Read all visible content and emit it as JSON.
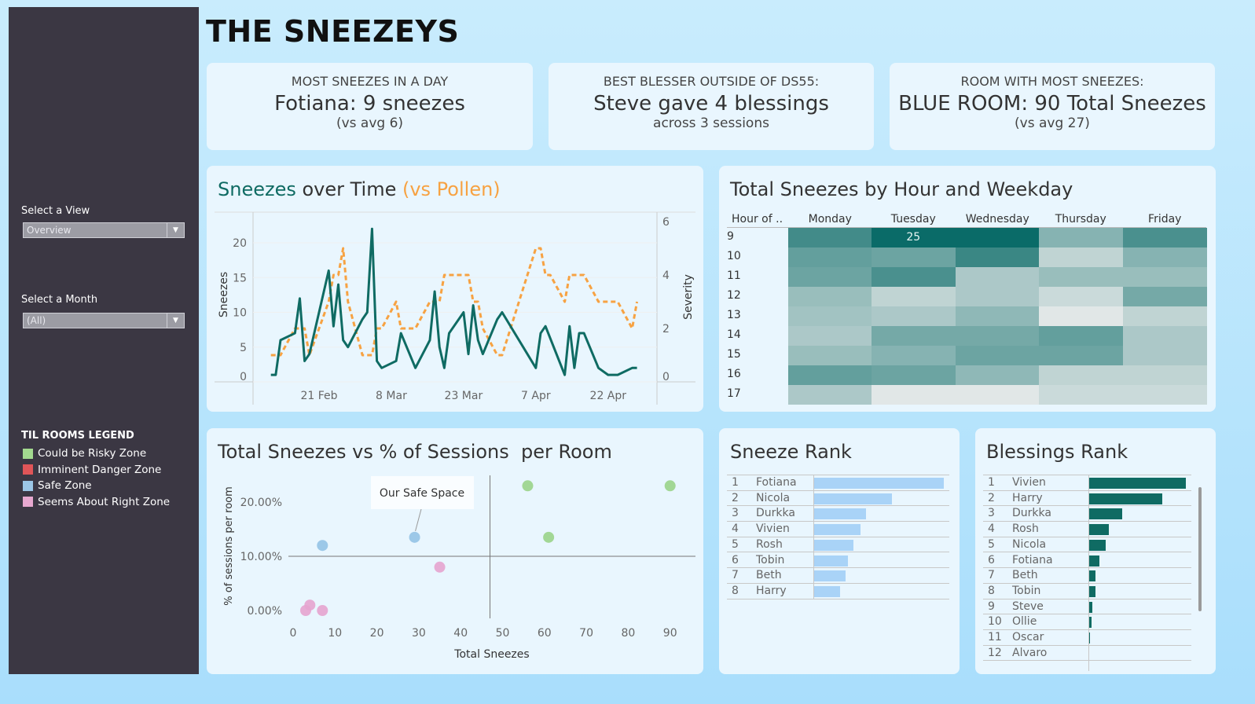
{
  "title": "THE SNEEZEYS",
  "sidebar": {
    "view_label": "Select a View",
    "view_value": "Overview",
    "month_label": "Select a Month",
    "month_value": "(All)",
    "legend_title": "TIL ROOMS LEGEND",
    "legend": [
      {
        "label": "Could be Risky Zone",
        "color": "#a3d98f"
      },
      {
        "label": "Imminent Danger Zone",
        "color": "#e05558"
      },
      {
        "label": "Safe Zone",
        "color": "#9cc6e6"
      },
      {
        "label": "Seems About Right Zone",
        "color": "#e7a8d0"
      }
    ]
  },
  "kpis": [
    {
      "label": "MOST SNEEZES IN A DAY",
      "value": "Fotiana: 9 sneezes",
      "sub": "(vs avg 6)"
    },
    {
      "label": "BEST BLESSER OUTSIDE OF DS55:",
      "value": "Steve gave 4 blessings",
      "sub": "across 3 sessions"
    },
    {
      "label": "ROOM WITH MOST SNEEZES:",
      "value": "BLUE ROOM: 90 Total Sneezes",
      "sub": "(vs avg 27)"
    }
  ],
  "colors": {
    "teal": "#0f6b63",
    "orange": "#f7a242",
    "bar_light": "#a9d3f7"
  },
  "chart_data": [
    {
      "type": "line",
      "title_parts": [
        "Sneezes",
        " over Time ",
        "(vs Pollen)"
      ],
      "ylabel": "Sneezes",
      "y2label": "Severity",
      "yticks": [
        0,
        5,
        10,
        15,
        20
      ],
      "y2ticks": [
        0,
        2,
        4,
        6
      ],
      "xticks": [
        "21 Feb",
        "8 Mar",
        "23 Mar",
        "7 Apr",
        "22 Apr"
      ],
      "xtick_dates": [
        "02-21",
        "03-08",
        "03-23",
        "04-07",
        "04-22"
      ],
      "series": [
        {
          "axis": "left",
          "style": "solid",
          "points": [
            [
              "02-11",
              1
            ],
            [
              "02-12",
              1
            ],
            [
              "02-13",
              6
            ],
            [
              "02-16",
              7
            ],
            [
              "02-17",
              12
            ],
            [
              "02-18",
              3
            ],
            [
              "02-19",
              4
            ],
            [
              "02-23",
              16
            ],
            [
              "02-24",
              8
            ],
            [
              "02-25",
              14
            ],
            [
              "02-26",
              6
            ],
            [
              "02-27",
              5
            ],
            [
              "03-02",
              9
            ],
            [
              "03-03",
              10
            ],
            [
              "03-04",
              22
            ],
            [
              "03-05",
              3
            ],
            [
              "03-06",
              2
            ],
            [
              "03-09",
              3
            ],
            [
              "03-10",
              7
            ],
            [
              "03-13",
              2
            ],
            [
              "03-16",
              6
            ],
            [
              "03-17",
              13
            ],
            [
              "03-18",
              5
            ],
            [
              "03-19",
              2
            ],
            [
              "03-20",
              7
            ],
            [
              "03-23",
              10
            ],
            [
              "03-24",
              4
            ],
            [
              "03-25",
              11
            ],
            [
              "03-26",
              6
            ],
            [
              "03-27",
              4
            ],
            [
              "03-30",
              9
            ],
            [
              "03-31",
              10
            ],
            [
              "04-07",
              2
            ],
            [
              "04-08",
              7
            ],
            [
              "04-09",
              8
            ],
            [
              "04-13",
              1
            ],
            [
              "04-14",
              8
            ],
            [
              "04-15",
              2
            ],
            [
              "04-16",
              7
            ],
            [
              "04-17",
              7
            ],
            [
              "04-20",
              2
            ],
            [
              "04-22",
              1
            ],
            [
              "04-24",
              1
            ],
            [
              "04-27",
              2
            ],
            [
              "04-28",
              2
            ]
          ]
        },
        {
          "axis": "right",
          "style": "dashed",
          "points": [
            [
              "02-11",
              1
            ],
            [
              "02-13",
              1
            ],
            [
              "02-16",
              2
            ],
            [
              "02-18",
              2
            ],
            [
              "02-19",
              1
            ],
            [
              "02-23",
              3
            ],
            [
              "02-24",
              4
            ],
            [
              "02-25",
              4
            ],
            [
              "02-26",
              5
            ],
            [
              "02-27",
              3
            ],
            [
              "03-02",
              1
            ],
            [
              "03-04",
              1
            ],
            [
              "03-05",
              2
            ],
            [
              "03-06",
              2
            ],
            [
              "03-09",
              3
            ],
            [
              "03-10",
              2
            ],
            [
              "03-13",
              2
            ],
            [
              "03-16",
              3
            ],
            [
              "03-18",
              3
            ],
            [
              "03-19",
              4
            ],
            [
              "03-24",
              4
            ],
            [
              "03-25",
              3
            ],
            [
              "03-26",
              3
            ],
            [
              "03-27",
              2
            ],
            [
              "03-30",
              1
            ],
            [
              "03-31",
              1
            ],
            [
              "04-07",
              5
            ],
            [
              "04-08",
              5
            ],
            [
              "04-09",
              4
            ],
            [
              "04-10",
              4
            ],
            [
              "04-13",
              3
            ],
            [
              "04-14",
              4
            ],
            [
              "04-17",
              4
            ],
            [
              "04-20",
              3
            ],
            [
              "04-24",
              3
            ],
            [
              "04-27",
              2
            ],
            [
              "04-28",
              3
            ]
          ]
        }
      ]
    },
    {
      "type": "heatmap",
      "title": "Total Sneezes by Hour and Weekday",
      "row_header": "Hour of ..",
      "columns": [
        "Monday",
        "Tuesday",
        "Wednesday",
        "Thursday",
        "Friday"
      ],
      "rows": [
        "9",
        "10",
        "11",
        "12",
        "13",
        "14",
        "15",
        "16",
        "17"
      ],
      "values": [
        [
          18,
          25,
          25,
          10,
          17
        ],
        [
          14,
          13,
          19,
          4,
          10
        ],
        [
          13,
          17,
          6,
          8,
          8
        ],
        [
          8,
          4,
          6,
          3,
          12
        ],
        [
          7,
          6,
          9,
          1,
          4
        ],
        [
          6,
          12,
          12,
          14,
          6
        ],
        [
          8,
          10,
          13,
          13,
          6
        ],
        [
          14,
          13,
          9,
          4,
          4
        ],
        [
          6,
          1,
          1,
          3,
          3
        ]
      ],
      "label": {
        "row": 0,
        "col": 1,
        "text": "25"
      }
    },
    {
      "type": "scatter",
      "title": "Total Sneezes vs % of Sessions  per Room",
      "xlabel": "Total Sneezes",
      "ylabel": "% of sessions per room",
      "xticks": [
        "0",
        "10",
        "20",
        "30",
        "40",
        "50",
        "60",
        "70",
        "80",
        "90"
      ],
      "yticks": [
        "0.00%",
        "10.00%",
        "20.00%"
      ],
      "ref_lines": {
        "x": 47,
        "y": 10
      },
      "annotation": {
        "text": "Our Safe Space",
        "x": 29,
        "y": 13.5
      },
      "points": [
        {
          "x": 7,
          "y": 12,
          "zone": "Safe Zone",
          "color": "#94c3e6"
        },
        {
          "x": 29,
          "y": 13.5,
          "zone": "Safe Zone",
          "color": "#94c3e6"
        },
        {
          "x": 56,
          "y": 23,
          "zone": "Could be Risky Zone",
          "color": "#9ad48a"
        },
        {
          "x": 90,
          "y": 23,
          "zone": "Could be Risky Zone",
          "color": "#9ad48a"
        },
        {
          "x": 61,
          "y": 13.5,
          "zone": "Could be Risky Zone",
          "color": "#9ad48a"
        },
        {
          "x": 35,
          "y": 8,
          "zone": "Seems About Right Zone",
          "color": "#e6a4cf"
        },
        {
          "x": 3,
          "y": 0,
          "zone": "Seems About Right Zone",
          "color": "#e6a4cf"
        },
        {
          "x": 4,
          "y": 1,
          "zone": "Seems About Right Zone",
          "color": "#e6a4cf"
        },
        {
          "x": 7,
          "y": 0,
          "zone": "Seems About Right Zone",
          "color": "#e6a4cf"
        }
      ]
    },
    {
      "type": "bar",
      "title": "Sneeze Rank",
      "ranks": [
        "1",
        "2",
        "3",
        "4",
        "5",
        "6",
        "7",
        "8"
      ],
      "categories": [
        "Fotiana",
        "Nicola",
        "Durkka",
        "Vivien",
        "Rosh",
        "Tobin",
        "Beth",
        "Harry"
      ],
      "values": [
        50,
        30,
        20,
        18,
        15,
        13,
        12,
        10
      ]
    },
    {
      "type": "bar",
      "title": "Blessings Rank",
      "ranks": [
        "1",
        "2",
        "3",
        "4",
        "5",
        "6",
        "7",
        "8",
        "9",
        "10",
        "11",
        "12"
      ],
      "categories": [
        "Vivien",
        "Harry",
        "Durkka",
        "Rosh",
        "Nicola",
        "Fotiana",
        "Beth",
        "Tobin",
        "Steve",
        "Ollie",
        "Oscar",
        "Alvaro"
      ],
      "values": [
        29,
        22,
        10,
        6,
        5,
        3,
        2,
        2,
        1,
        0.7,
        0.2,
        0
      ]
    }
  ]
}
